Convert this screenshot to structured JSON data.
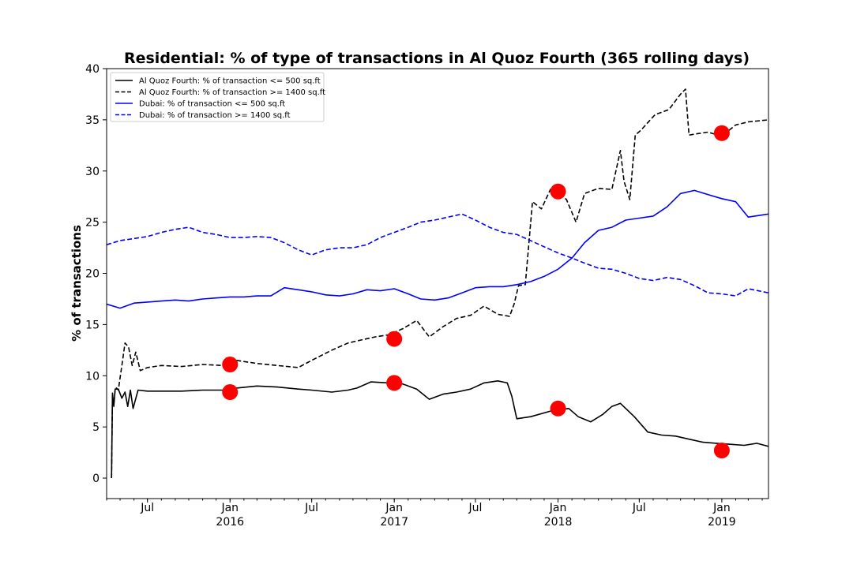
{
  "chart_data": {
    "type": "line",
    "title": "Residential: % of type of transactions in Al Quoz Fourth (365 rolling days)",
    "xlabel": "",
    "ylabel": "% of transactions",
    "ylim": [
      -2,
      40
    ],
    "xlim": [
      "2015-04-01",
      "2019-04-15"
    ],
    "yticks": [
      0,
      5,
      10,
      15,
      20,
      25,
      30,
      35,
      40
    ],
    "xticks": [
      {
        "date": "2015-07-01",
        "label": "Jul",
        "sublabel": ""
      },
      {
        "date": "2016-01-01",
        "label": "Jan",
        "sublabel": "2016"
      },
      {
        "date": "2016-07-01",
        "label": "Jul",
        "sublabel": ""
      },
      {
        "date": "2017-01-01",
        "label": "Jan",
        "sublabel": "2017"
      },
      {
        "date": "2017-07-01",
        "label": "Jul",
        "sublabel": ""
      },
      {
        "date": "2018-01-01",
        "label": "Jan",
        "sublabel": "2018"
      },
      {
        "date": "2018-07-01",
        "label": "Jul",
        "sublabel": ""
      },
      {
        "date": "2019-01-01",
        "label": "Jan",
        "sublabel": "2019"
      }
    ],
    "grid": false,
    "legend_position": "top-left",
    "series": [
      {
        "name": "Al Quoz Fourth: % of transaction <= 500 sq.ft",
        "color": "#000000",
        "dash": "solid",
        "x": [
          "2015-04-12",
          "2015-04-14",
          "2015-04-17",
          "2015-04-20",
          "2015-04-23",
          "2015-04-27",
          "2015-05-05",
          "2015-05-12",
          "2015-05-18",
          "2015-05-24",
          "2015-05-30",
          "2015-06-10",
          "2015-07-01",
          "2015-08-01",
          "2015-09-15",
          "2015-11-01",
          "2015-12-15",
          "2016-01-15",
          "2016-03-01",
          "2016-04-15",
          "2016-06-01",
          "2016-07-01",
          "2016-08-15",
          "2016-09-20",
          "2016-10-10",
          "2016-11-10",
          "2016-12-20",
          "2017-01-20",
          "2017-02-20",
          "2017-03-20",
          "2017-04-20",
          "2017-05-20",
          "2017-06-20",
          "2017-07-20",
          "2017-08-20",
          "2017-09-10",
          "2017-09-20",
          "2017-10-01",
          "2017-11-01",
          "2017-12-20",
          "2018-01-25",
          "2018-02-15",
          "2018-03-15",
          "2018-04-10",
          "2018-05-01",
          "2018-05-20",
          "2018-06-20",
          "2018-07-20",
          "2018-08-20",
          "2018-09-20",
          "2018-10-20",
          "2018-11-20",
          "2018-12-20",
          "2019-01-20",
          "2019-02-20",
          "2019-03-20",
          "2019-04-15"
        ],
        "y": [
          0,
          8.3,
          7.0,
          8.7,
          8.7,
          8.7,
          7.8,
          8.4,
          7.0,
          8.6,
          6.8,
          8.6,
          8.5,
          8.5,
          8.5,
          8.6,
          8.6,
          8.8,
          9.0,
          8.9,
          8.7,
          8.6,
          8.4,
          8.6,
          8.8,
          9.4,
          9.3,
          9.2,
          8.7,
          7.7,
          8.2,
          8.4,
          8.7,
          9.3,
          9.5,
          9.3,
          8.0,
          5.8,
          6.0,
          6.6,
          6.8,
          6.0,
          5.5,
          6.2,
          7.0,
          7.3,
          6.0,
          4.5,
          4.2,
          4.1,
          3.8,
          3.5,
          3.4,
          3.3,
          3.2,
          3.4,
          3.1
        ]
      },
      {
        "name": "Al Quoz Fourth: % of transaction >= 1400 sq.ft",
        "color": "#000000",
        "dash": "dashed",
        "x": [
          "2015-04-12",
          "2015-04-14",
          "2015-04-17",
          "2015-04-20",
          "2015-04-23",
          "2015-04-27",
          "2015-05-05",
          "2015-05-12",
          "2015-05-20",
          "2015-05-28",
          "2015-06-05",
          "2015-06-15",
          "2015-07-01",
          "2015-08-01",
          "2015-09-15",
          "2015-11-01",
          "2015-12-15",
          "2016-01-15",
          "2016-03-01",
          "2016-04-15",
          "2016-06-01",
          "2016-07-01",
          "2016-08-15",
          "2016-09-20",
          "2016-10-20",
          "2016-11-20",
          "2016-12-20",
          "2017-01-20",
          "2017-02-20",
          "2017-03-20",
          "2017-04-20",
          "2017-05-20",
          "2017-06-20",
          "2017-07-20",
          "2017-08-20",
          "2017-09-15",
          "2017-09-25",
          "2017-10-05",
          "2017-10-20",
          "2017-11-05",
          "2017-11-25",
          "2017-12-15",
          "2018-01-01",
          "2018-01-20",
          "2018-02-10",
          "2018-03-01",
          "2018-04-01",
          "2018-05-01",
          "2018-05-20",
          "2018-05-28",
          "2018-06-10",
          "2018-06-22",
          "2018-07-05",
          "2018-08-05",
          "2018-09-05",
          "2018-10-01",
          "2018-10-12",
          "2018-10-20",
          "2018-11-01",
          "2018-12-01",
          "2019-01-01",
          "2019-02-01",
          "2019-03-01",
          "2019-04-15"
        ],
        "y": [
          0,
          8.0,
          7.2,
          8.7,
          8.8,
          8.6,
          11.0,
          13.2,
          12.8,
          11.0,
          12.3,
          10.5,
          10.8,
          11.0,
          10.9,
          11.1,
          11.0,
          11.5,
          11.2,
          11.0,
          10.8,
          11.5,
          12.5,
          13.2,
          13.5,
          13.8,
          14.0,
          14.6,
          15.4,
          13.8,
          14.8,
          15.6,
          15.9,
          16.8,
          16.0,
          15.8,
          17.0,
          18.8,
          18.9,
          27.0,
          26.3,
          28.2,
          28.0,
          27.2,
          25.0,
          27.8,
          28.3,
          28.2,
          32.0,
          29.0,
          27.2,
          33.5,
          34.0,
          35.5,
          36.0,
          37.5,
          38.0,
          33.5,
          33.6,
          33.8,
          33.4,
          34.5,
          34.8,
          35.0
        ]
      },
      {
        "name": "Dubai: % of transaction <= 500 sq.ft",
        "color": "#0000ff",
        "dash": "solid",
        "x": [
          "2015-04-01",
          "2015-05-01",
          "2015-06-01",
          "2015-07-01",
          "2015-08-01",
          "2015-09-01",
          "2015-10-01",
          "2015-11-01",
          "2015-12-01",
          "2016-01-01",
          "2016-02-01",
          "2016-03-01",
          "2016-04-01",
          "2016-05-01",
          "2016-06-01",
          "2016-07-01",
          "2016-08-01",
          "2016-09-01",
          "2016-10-01",
          "2016-11-01",
          "2016-12-01",
          "2017-01-01",
          "2017-02-01",
          "2017-03-01",
          "2017-04-01",
          "2017-05-01",
          "2017-06-01",
          "2017-07-01",
          "2017-08-01",
          "2017-09-01",
          "2017-10-01",
          "2017-11-01",
          "2017-12-01",
          "2018-01-01",
          "2018-02-01",
          "2018-03-01",
          "2018-04-01",
          "2018-05-01",
          "2018-06-01",
          "2018-07-01",
          "2018-08-01",
          "2018-09-01",
          "2018-10-01",
          "2018-11-01",
          "2018-12-01",
          "2019-01-01",
          "2019-02-01",
          "2019-03-01",
          "2019-04-15"
        ],
        "y": [
          17.0,
          16.6,
          17.1,
          17.2,
          17.3,
          17.4,
          17.3,
          17.5,
          17.6,
          17.7,
          17.7,
          17.8,
          17.8,
          18.6,
          18.4,
          18.2,
          17.9,
          17.8,
          18.0,
          18.4,
          18.3,
          18.5,
          18.0,
          17.5,
          17.4,
          17.6,
          18.1,
          18.6,
          18.7,
          18.7,
          18.9,
          19.2,
          19.7,
          20.4,
          21.5,
          23.0,
          24.2,
          24.5,
          25.2,
          25.4,
          25.6,
          26.5,
          27.8,
          28.1,
          27.7,
          27.3,
          27.0,
          25.5,
          25.8
        ]
      },
      {
        "name": "Dubai: % of transaction >= 1400 sq.ft",
        "color": "#0000ff",
        "dash": "dashed",
        "x": [
          "2015-04-01",
          "2015-05-01",
          "2015-06-01",
          "2015-07-01",
          "2015-08-01",
          "2015-09-01",
          "2015-10-01",
          "2015-11-01",
          "2015-12-01",
          "2016-01-01",
          "2016-02-01",
          "2016-03-01",
          "2016-04-01",
          "2016-05-01",
          "2016-06-01",
          "2016-07-01",
          "2016-08-01",
          "2016-09-01",
          "2016-10-01",
          "2016-11-01",
          "2016-12-01",
          "2017-01-01",
          "2017-02-01",
          "2017-03-01",
          "2017-04-01",
          "2017-05-01",
          "2017-06-01",
          "2017-07-01",
          "2017-08-01",
          "2017-09-01",
          "2017-10-01",
          "2017-11-01",
          "2017-12-01",
          "2018-01-01",
          "2018-02-01",
          "2018-03-01",
          "2018-04-01",
          "2018-05-01",
          "2018-06-01",
          "2018-07-01",
          "2018-08-01",
          "2018-09-01",
          "2018-10-01",
          "2018-11-01",
          "2018-12-01",
          "2019-01-01",
          "2019-02-01",
          "2019-03-01",
          "2019-04-15"
        ],
        "y": [
          22.8,
          23.2,
          23.4,
          23.6,
          24.0,
          24.3,
          24.5,
          24.0,
          23.8,
          23.5,
          23.5,
          23.6,
          23.5,
          23.0,
          22.3,
          21.8,
          22.3,
          22.5,
          22.5,
          22.8,
          23.5,
          24.0,
          24.5,
          25.0,
          25.2,
          25.5,
          25.8,
          25.2,
          24.5,
          24.0,
          23.8,
          23.2,
          22.6,
          22.0,
          21.5,
          21.0,
          20.5,
          20.4,
          20.0,
          19.5,
          19.3,
          19.6,
          19.4,
          18.8,
          18.1,
          18.0,
          17.8,
          18.5,
          18.1
        ]
      }
    ],
    "markers": {
      "color": "#ff0000",
      "x": [
        "2016-01-01",
        "2016-01-01",
        "2017-01-01",
        "2017-01-01",
        "2018-01-01",
        "2018-01-01",
        "2019-01-01",
        "2019-01-01"
      ],
      "y": [
        11.1,
        8.4,
        13.6,
        9.3,
        28.0,
        6.8,
        33.7,
        2.7
      ]
    }
  }
}
